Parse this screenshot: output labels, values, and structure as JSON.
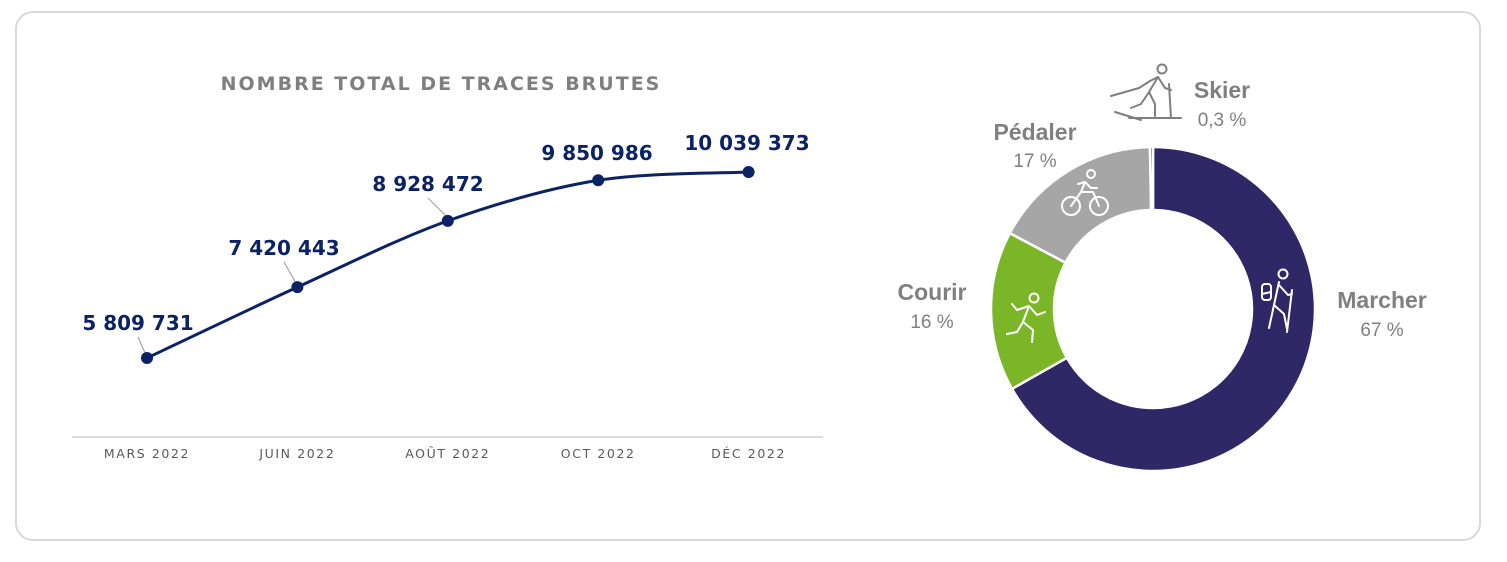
{
  "colors": {
    "line": "#0b2265",
    "title": "#7f7f7f",
    "axis_text": "#595959",
    "axis_line": "#d0d0d0",
    "label_text": "#808080"
  },
  "chart_data": [
    {
      "type": "line",
      "title": "NOMBRE TOTAL DE TRACES BRUTES",
      "categories": [
        "MARS 2022",
        "JUIN 2022",
        "AOÛT 2022",
        "OCT 2022",
        "DÉC 2022"
      ],
      "values": [
        5809731,
        7420443,
        8928472,
        9850986,
        10039373
      ],
      "value_labels": [
        "5 809 731",
        "7 420 443",
        "8 928 472",
        "9 850 986",
        "10 039 373"
      ],
      "grid": false,
      "legend": "none"
    },
    {
      "type": "pie",
      "subtype": "donut",
      "slices": [
        {
          "label": "Marcher",
          "value_label": "67 %",
          "value": 67,
          "color": "#2e2966",
          "icon": "hiker-icon"
        },
        {
          "label": "Courir",
          "value_label": "16 %",
          "value": 16,
          "color": "#7ab628",
          "icon": "runner-icon"
        },
        {
          "label": "Pédaler",
          "value_label": "17 %",
          "value": 17,
          "color": "#a6a6a6",
          "icon": "cyclist-icon"
        },
        {
          "label": "Skier",
          "value_label": "0,3 %",
          "value": 0.3,
          "color": "#2e2966",
          "icon": "skier-icon"
        }
      ]
    }
  ]
}
